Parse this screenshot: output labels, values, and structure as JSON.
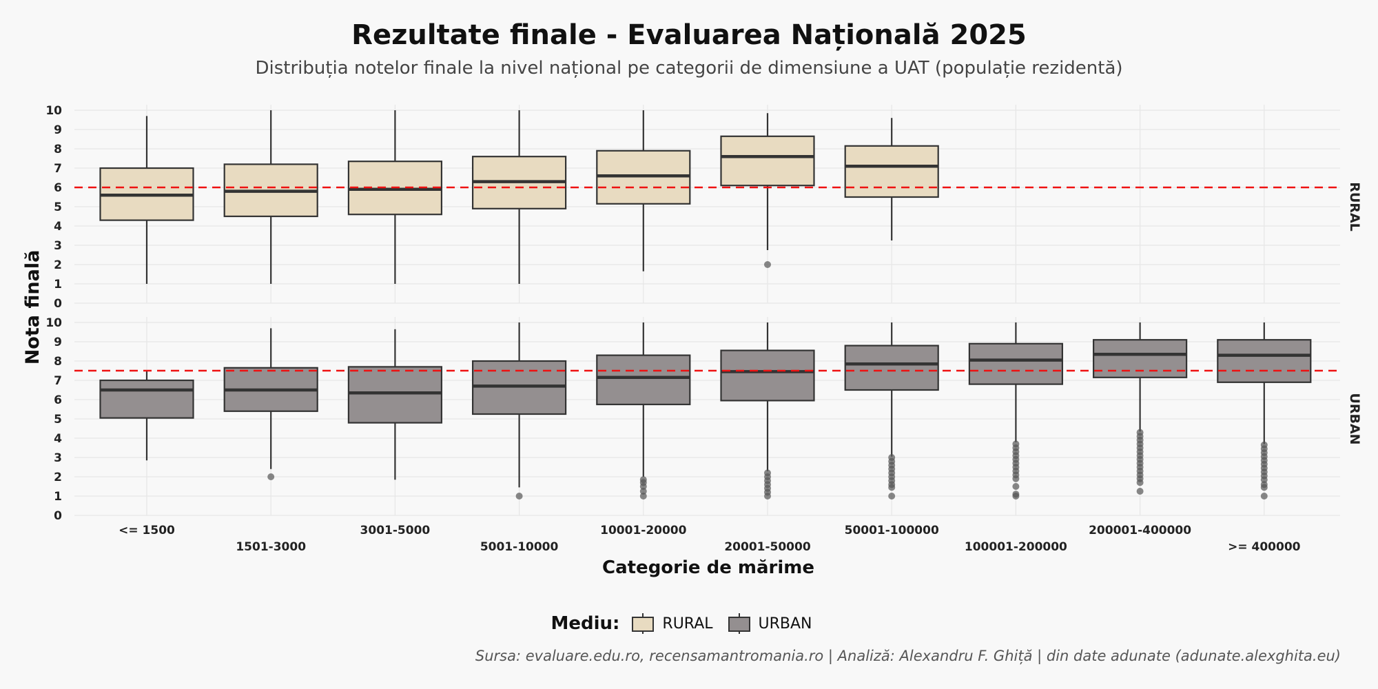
{
  "title": "Rezultate finale - Evaluarea Națională 2025",
  "subtitle": "Distribuția notelor finale la nivel național pe categorii de dimensiune a UAT (populație rezidentă)",
  "caption": "Sursa: evaluare.edu.ro, recensamantromania.ro | Analiză: Alexandru F. Ghiță | din date adunate (adunate.alexghita.eu)",
  "legend": {
    "title": "Mediu:",
    "items": [
      {
        "label": "RURAL",
        "color": "#e8dbc1"
      },
      {
        "label": "URBAN",
        "color": "#948f90"
      }
    ]
  },
  "chart_data": {
    "type": "boxplot",
    "xlabel": "Categorie de mărime",
    "ylabel": "Nota finală",
    "ylim": [
      0,
      10
    ],
    "yticks": [
      0,
      1,
      2,
      3,
      4,
      5,
      6,
      7,
      8,
      9,
      10
    ],
    "categories": [
      "<= 1500",
      "1501-3000",
      "3001-5000",
      "5001-10000",
      "10001-20000",
      "20001-50000",
      "50001-100000",
      "100001-200000",
      "200001-400000",
      ">= 400000"
    ],
    "facets": [
      {
        "name": "RURAL",
        "fill": "#e8dbc1",
        "reference_line": 6.0,
        "boxes": [
          {
            "category": "<= 1500",
            "min": 1.0,
            "q1": 4.3,
            "median": 5.6,
            "q3": 7.0,
            "max": 9.7,
            "outliers": []
          },
          {
            "category": "1501-3000",
            "min": 1.0,
            "q1": 4.5,
            "median": 5.8,
            "q3": 7.2,
            "max": 10.0,
            "outliers": []
          },
          {
            "category": "3001-5000",
            "min": 1.0,
            "q1": 4.6,
            "median": 5.9,
            "q3": 7.35,
            "max": 10.0,
            "outliers": []
          },
          {
            "category": "5001-10000",
            "min": 1.0,
            "q1": 4.9,
            "median": 6.3,
            "q3": 7.6,
            "max": 10.0,
            "outliers": []
          },
          {
            "category": "10001-20000",
            "min": 1.65,
            "q1": 5.15,
            "median": 6.6,
            "q3": 7.9,
            "max": 10.0,
            "outliers": []
          },
          {
            "category": "20001-50000",
            "min": 2.75,
            "q1": 6.1,
            "median": 7.6,
            "q3": 8.65,
            "max": 9.85,
            "outliers": [
              2.0
            ]
          },
          {
            "category": "50001-100000",
            "min": 3.25,
            "q1": 5.5,
            "median": 7.1,
            "q3": 8.15,
            "max": 9.6,
            "outliers": []
          }
        ]
      },
      {
        "name": "URBAN",
        "fill": "#948f90",
        "reference_line": 7.5,
        "boxes": [
          {
            "category": "<= 1500",
            "min": 2.85,
            "q1": 5.05,
            "median": 6.5,
            "q3": 7.0,
            "max": 7.5,
            "outliers": []
          },
          {
            "category": "1501-3000",
            "min": 2.4,
            "q1": 5.4,
            "median": 6.5,
            "q3": 7.65,
            "max": 9.7,
            "outliers": [
              2.0
            ]
          },
          {
            "category": "3001-5000",
            "min": 1.85,
            "q1": 4.8,
            "median": 6.35,
            "q3": 7.7,
            "max": 9.65,
            "outliers": []
          },
          {
            "category": "5001-10000",
            "min": 1.45,
            "q1": 5.25,
            "median": 6.7,
            "q3": 8.0,
            "max": 10.0,
            "outliers": [
              1.0
            ]
          },
          {
            "category": "10001-20000",
            "min": 2.0,
            "q1": 5.75,
            "median": 7.15,
            "q3": 8.3,
            "max": 10.0,
            "outliers": [
              1.85,
              1.7,
              1.5,
              1.25,
              1.0
            ]
          },
          {
            "category": "20001-50000",
            "min": 2.3,
            "q1": 5.95,
            "median": 7.45,
            "q3": 8.55,
            "max": 10.0,
            "outliers": [
              2.2,
              2.0,
              1.8,
              1.6,
              1.4,
              1.2,
              1.0
            ]
          },
          {
            "category": "50001-100000",
            "min": 3.05,
            "q1": 6.5,
            "median": 7.85,
            "q3": 8.8,
            "max": 10.0,
            "outliers": [
              3.0,
              2.8,
              2.6,
              2.4,
              2.2,
              2.0,
              1.8,
              1.6,
              1.45,
              1.0
            ]
          },
          {
            "category": "100001-200000",
            "min": 3.8,
            "q1": 6.8,
            "median": 8.05,
            "q3": 8.9,
            "max": 10.0,
            "outliers": [
              3.7,
              3.5,
              3.3,
              3.1,
              2.9,
              2.7,
              2.5,
              2.3,
              2.1,
              1.9,
              1.5,
              1.1,
              1.0
            ]
          },
          {
            "category": "200001-400000",
            "min": 4.35,
            "q1": 7.15,
            "median": 8.35,
            "q3": 9.1,
            "max": 10.0,
            "outliers": [
              4.3,
              4.1,
              3.9,
              3.7,
              3.5,
              3.3,
              3.1,
              2.9,
              2.7,
              2.5,
              2.3,
              2.1,
              1.9,
              1.7,
              1.25
            ]
          },
          {
            "category": ">= 400000",
            "min": 3.7,
            "q1": 6.9,
            "median": 8.3,
            "q3": 9.1,
            "max": 10.0,
            "outliers": [
              3.65,
              3.45,
              3.25,
              3.05,
              2.85,
              2.65,
              2.45,
              2.25,
              2.05,
              1.85,
              1.6,
              1.45,
              1.0
            ]
          }
        ]
      }
    ],
    "grid": true
  }
}
